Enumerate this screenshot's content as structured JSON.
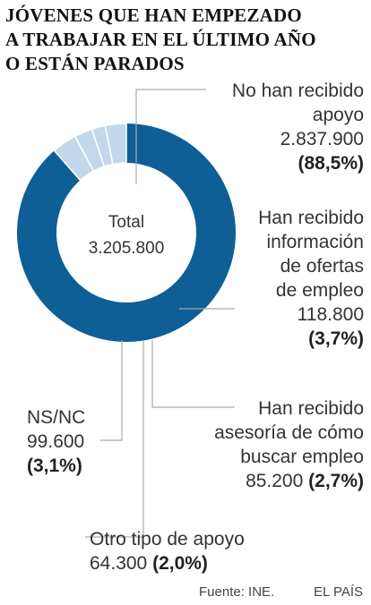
{
  "title_lines": [
    "JÓVENES QUE HAN EMPEZADO",
    "A TRABAJAR EN EL ÚLTIMO AÑO",
    "O ESTÁN PARADOS"
  ],
  "center": {
    "label": "Total",
    "value": "3.205.800"
  },
  "colors": {
    "main": "#0d5f95",
    "minor": "#c2d8ea",
    "separator": "#ffffff",
    "leader": "#aaaaaa"
  },
  "chart_data": {
    "type": "pie",
    "donut": true,
    "total": 3205800,
    "slices": [
      {
        "name": "No han recibido apoyo",
        "value": 2837900,
        "percent": 88.5
      },
      {
        "name": "Han recibido información de ofertas de empleo",
        "value": 118800,
        "percent": 3.7
      },
      {
        "name": "Han recibido asesoría de cómo buscar empleo",
        "value": 85200,
        "percent": 2.7
      },
      {
        "name": "Otro tipo de apoyo",
        "value": 64300,
        "percent": 2.0
      },
      {
        "name": "NS/NC",
        "value": 99600,
        "percent": 3.1
      }
    ]
  },
  "labels": {
    "no_apoyo": {
      "lines": [
        "No han recibido",
        "apoyo"
      ],
      "value": "2.837.900",
      "pct": "(88,5%)"
    },
    "ofertas": {
      "lines": [
        "Han recibido",
        "información",
        "de ofertas",
        "de empleo"
      ],
      "value": "118.800",
      "pct": "(3,7%)"
    },
    "asesoria": {
      "lines": [
        "Han recibido",
        "asesoría de cómo",
        "buscar empleo"
      ],
      "value": "85.200",
      "pct": "(2,7%)"
    },
    "otro": {
      "line": "Otro tipo de apoyo",
      "value": "64.300",
      "pct": "(2,0%)"
    },
    "nsnc": {
      "line": "NS/NC",
      "value": "99.600",
      "pct": "(3,1%)"
    }
  },
  "footer": {
    "source": "Fuente: INE.",
    "brand": "EL PAÍS"
  }
}
